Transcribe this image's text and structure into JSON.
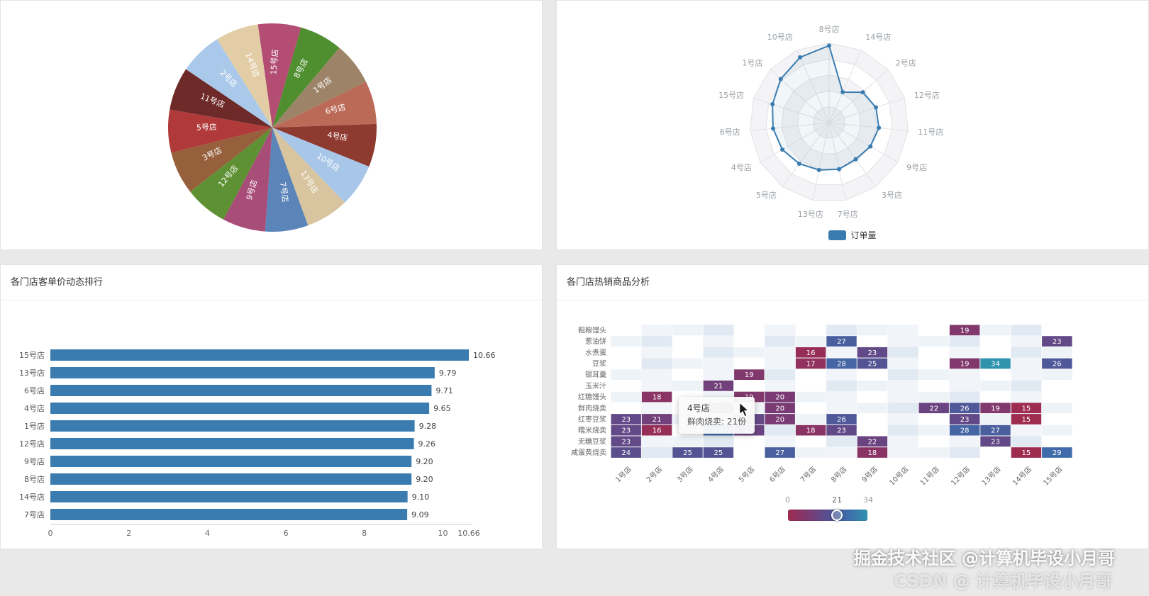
{
  "watermark": {
    "line1": "掘金技术社区 @计算机毕设小月哥",
    "line2": "CSDN @ 计算机毕设小月哥"
  },
  "tooltip": {
    "title": "4号店",
    "value_line": "鲜肉烧卖: 21份"
  },
  "chart_data": [
    {
      "type": "pie",
      "start_angle": -8,
      "slices": [
        {
          "label": "15号店",
          "value": 1,
          "color": "#b34d72"
        },
        {
          "label": "8号店",
          "value": 1,
          "color": "#4f8f2f"
        },
        {
          "label": "1号店",
          "value": 1,
          "color": "#9d8468"
        },
        {
          "label": "6号店",
          "value": 1,
          "color": "#bc6a58"
        },
        {
          "label": "4号店",
          "value": 1,
          "color": "#8e3a30"
        },
        {
          "label": "10号店",
          "value": 1,
          "color": "#a7c6e8"
        },
        {
          "label": "13号店",
          "value": 1,
          "color": "#d8c49e"
        },
        {
          "label": "7号店",
          "value": 1,
          "color": "#5b84b8"
        },
        {
          "label": "9号店",
          "value": 1,
          "color": "#a84d78"
        },
        {
          "label": "12号店",
          "value": 1,
          "color": "#5d9133"
        },
        {
          "label": "3号店",
          "value": 1,
          "color": "#96603c"
        },
        {
          "label": "5号店",
          "value": 1,
          "color": "#b03a3a"
        },
        {
          "label": "11号店",
          "value": 1,
          "color": "#6e2a28"
        },
        {
          "label": "2号店",
          "value": 1,
          "color": "#aac9ea"
        },
        {
          "label": "14号店",
          "value": 1,
          "color": "#e2cda6"
        }
      ]
    },
    {
      "type": "radar",
      "indicators": [
        "8号店",
        "14号店",
        "2号店",
        "12号店",
        "11号店",
        "9号店",
        "3号店",
        "7号店",
        "13号店",
        "5号店",
        "4号店",
        "6号店",
        "15号店",
        "1号店",
        "10号店"
      ],
      "max": 100,
      "levels": 5,
      "series": [
        {
          "name": "订单量",
          "color": "#3a7cb0",
          "values": [
            97,
            42,
            57,
            62,
            63,
            60,
            57,
            60,
            61,
            64,
            68,
            71,
            75,
            82,
            90
          ]
        }
      ]
    },
    {
      "type": "bar",
      "title": "各门店客单价动态排行",
      "orientation": "horizontal",
      "categories": [
        "15号店",
        "13号店",
        "6号店",
        "4号店",
        "1号店",
        "12号店",
        "9号店",
        "8号店",
        "14号店",
        "7号店"
      ],
      "values": [
        10.66,
        9.79,
        9.71,
        9.65,
        9.28,
        9.26,
        9.2,
        9.2,
        9.1,
        9.09
      ],
      "xticks": [
        0,
        2,
        4,
        6,
        8,
        10,
        10.66
      ],
      "xlim": [
        0,
        10.66
      ],
      "color": "#3a7cb0"
    },
    {
      "type": "heatmap",
      "title": "各门店热销商品分析",
      "x_categories": [
        "1号店",
        "2号店",
        "3号店",
        "4号店",
        "5号店",
        "6号店",
        "7号店",
        "8号店",
        "9号店",
        "10号店",
        "11号店",
        "12号店",
        "13号店",
        "14号店",
        "15号店"
      ],
      "y_categories": [
        "粗粮馒头",
        "葱油饼",
        "水煮蛋",
        "豆浆",
        "银耳羹",
        "玉米汁",
        "红糖馒头",
        "鲜肉烧卖",
        "红枣豆浆",
        "糯米烧卖",
        "无糖豆浆",
        "咸蛋黄烧卖"
      ],
      "cells": [
        [
          0,
          11,
          19
        ],
        [
          1,
          7,
          27
        ],
        [
          1,
          14,
          23
        ],
        [
          2,
          6,
          16
        ],
        [
          2,
          8,
          23
        ],
        [
          3,
          6,
          17
        ],
        [
          3,
          7,
          28
        ],
        [
          3,
          8,
          25
        ],
        [
          3,
          11,
          19
        ],
        [
          3,
          12,
          34
        ],
        [
          3,
          14,
          26
        ],
        [
          4,
          4,
          19
        ],
        [
          5,
          3,
          21
        ],
        [
          6,
          1,
          18
        ],
        [
          6,
          4,
          19
        ],
        [
          6,
          5,
          20
        ],
        [
          7,
          3,
          21
        ],
        [
          7,
          5,
          20
        ],
        [
          7,
          10,
          22
        ],
        [
          7,
          11,
          26
        ],
        [
          7,
          12,
          19
        ],
        [
          7,
          13,
          15
        ],
        [
          8,
          0,
          23
        ],
        [
          8,
          1,
          21
        ],
        [
          8,
          4,
          23
        ],
        [
          8,
          5,
          20
        ],
        [
          8,
          7,
          26
        ],
        [
          8,
          11,
          23
        ],
        [
          8,
          13,
          15
        ],
        [
          9,
          0,
          23
        ],
        [
          9,
          1,
          16
        ],
        [
          9,
          3,
          29
        ],
        [
          9,
          4,
          22
        ],
        [
          9,
          6,
          18
        ],
        [
          9,
          7,
          23
        ],
        [
          9,
          11,
          28
        ],
        [
          9,
          12,
          27
        ],
        [
          10,
          0,
          23
        ],
        [
          10,
          8,
          22
        ],
        [
          10,
          12,
          23
        ],
        [
          11,
          0,
          24
        ],
        [
          11,
          2,
          25
        ],
        [
          11,
          3,
          25
        ],
        [
          11,
          5,
          27
        ],
        [
          11,
          8,
          18
        ],
        [
          11,
          13,
          15
        ],
        [
          11,
          14,
          29
        ]
      ],
      "colormap": [
        "#9e2b50",
        "#7c3a72",
        "#565090",
        "#3f6cab",
        "#2f93ae"
      ],
      "visualmap": {
        "min": 0,
        "current": 21,
        "max": 34
      }
    }
  ]
}
